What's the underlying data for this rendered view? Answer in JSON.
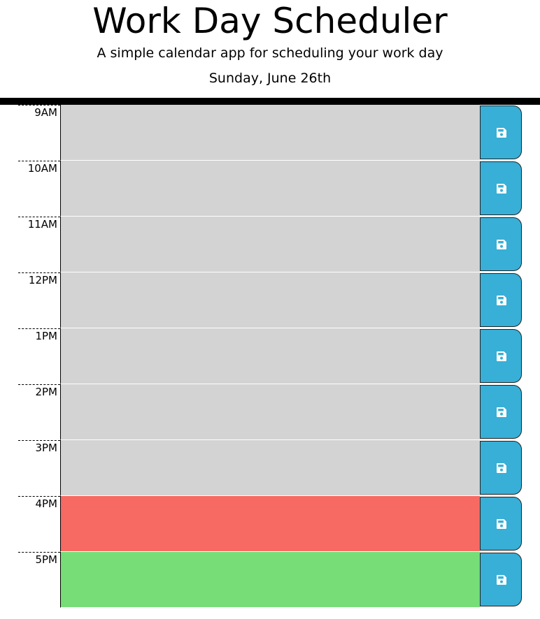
{
  "header": {
    "title": "Work Day Scheduler",
    "lead": "A simple calendar app for scheduling your work day",
    "current_day": "Sunday, June 26th"
  },
  "colors": {
    "past": "#d3d3d3",
    "present": "#f76a63",
    "future": "#77dd77",
    "save_button": "#38afd6"
  },
  "hours": [
    {
      "label": "9AM",
      "status": "past",
      "text": ""
    },
    {
      "label": "10AM",
      "status": "past",
      "text": ""
    },
    {
      "label": "11AM",
      "status": "past",
      "text": ""
    },
    {
      "label": "12PM",
      "status": "past",
      "text": ""
    },
    {
      "label": "1PM",
      "status": "past",
      "text": ""
    },
    {
      "label": "2PM",
      "status": "past",
      "text": ""
    },
    {
      "label": "3PM",
      "status": "past",
      "text": ""
    },
    {
      "label": "4PM",
      "status": "present",
      "text": ""
    },
    {
      "label": "5PM",
      "status": "future",
      "text": ""
    }
  ],
  "save_icon": "floppy-disk-icon"
}
